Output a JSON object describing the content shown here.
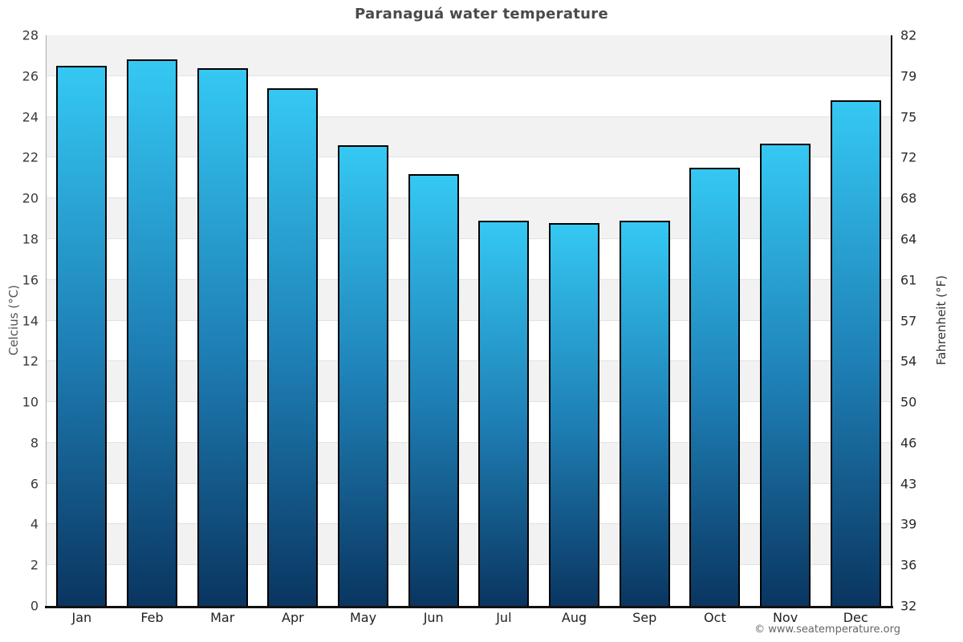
{
  "title": "Paranaguá water temperature",
  "watermark": "© www.seatemperature.org",
  "axes": {
    "left_title": "Celcius (°C)",
    "right_title": "Fahrenheit (°F)"
  },
  "chart_data": {
    "type": "bar",
    "title": "Paranaguá water temperature",
    "categories": [
      "Jan",
      "Feb",
      "Mar",
      "Apr",
      "May",
      "Jun",
      "Jul",
      "Aug",
      "Sep",
      "Oct",
      "Nov",
      "Dec"
    ],
    "series": [
      {
        "name": "Water temperature",
        "unit": "°C",
        "values": [
          26.5,
          26.8,
          26.4,
          25.4,
          22.6,
          21.2,
          18.9,
          18.8,
          18.9,
          21.5,
          22.7,
          24.8
        ]
      }
    ],
    "xlabel": "",
    "ylabel_left": "Celcius (°C)",
    "ylabel_right": "Fahrenheit (°F)",
    "ylim": [
      0,
      28
    ],
    "ytick_step": 2,
    "yticks_celsius": [
      "28",
      "26",
      "24",
      "22",
      "20",
      "18",
      "16",
      "14",
      "12",
      "10",
      "8",
      "6",
      "4",
      "2",
      "0"
    ],
    "yticks_fahrenheit": [
      "82",
      "79",
      "75",
      "72",
      "68",
      "64",
      "61",
      "57",
      "54",
      "50",
      "46",
      "43",
      "39",
      "36",
      "32"
    ],
    "grid": "horizontal alternating bands every 2°C, top band gray",
    "legend_position": "none"
  },
  "colors": {
    "bar_gradient_top": "#35c8f3",
    "bar_gradient_mid": "#1e7fb5",
    "bar_gradient_bottom": "#0a3560",
    "bar_border": "#000000",
    "band_gray": "#f2f2f2",
    "band_white": "#ffffff",
    "gridline": "#e2e2e2",
    "left_axis_line": "#ababab",
    "right_axis_line": "#151515",
    "bottom_axis_line": "#111111",
    "title_text": "#4a4a4a",
    "tick_text": "#3a3a3a",
    "axis_title_text": "#555555",
    "watermark_text": "#666666"
  }
}
